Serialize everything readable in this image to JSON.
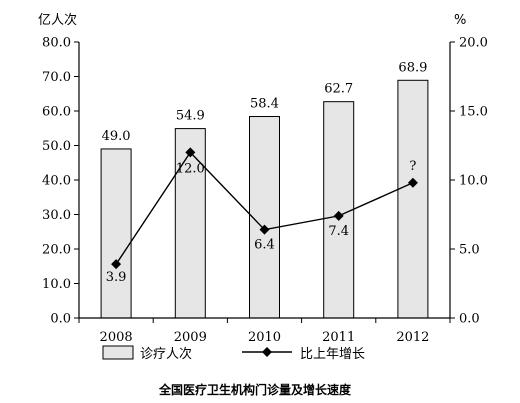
{
  "chart_data": {
    "type": "bar+line",
    "title": "全国医疗卫生机构门诊量及增长速度",
    "categories": [
      "2008",
      "2009",
      "2010",
      "2011",
      "2012"
    ],
    "left_axis": {
      "unit": "亿人次",
      "ylim": [
        0,
        80
      ],
      "ticks": [
        "0.0",
        "10.0",
        "20.0",
        "30.0",
        "40.0",
        "50.0",
        "60.0",
        "70.0",
        "80.0"
      ]
    },
    "right_axis": {
      "unit": "%",
      "ylim": [
        0,
        20
      ],
      "ticks": [
        "0.0",
        "5.0",
        "10.0",
        "15.0",
        "20.0"
      ]
    },
    "series": [
      {
        "name": "诊疗人次",
        "kind": "bar",
        "axis": "left",
        "values": [
          49.0,
          54.9,
          58.4,
          62.7,
          68.9
        ],
        "labels": [
          "49.0",
          "54.9",
          "58.4",
          "62.7",
          "68.9"
        ],
        "color": "#e6e6e6"
      },
      {
        "name": "比上年增长",
        "kind": "line",
        "axis": "right",
        "values": [
          3.9,
          12.0,
          6.4,
          7.4,
          9.8
        ],
        "labels": [
          "3.9",
          "12.0",
          "6.4",
          "7.4",
          "?"
        ],
        "color": "#000000"
      }
    ],
    "grid": false,
    "legend_position": "bottom"
  }
}
